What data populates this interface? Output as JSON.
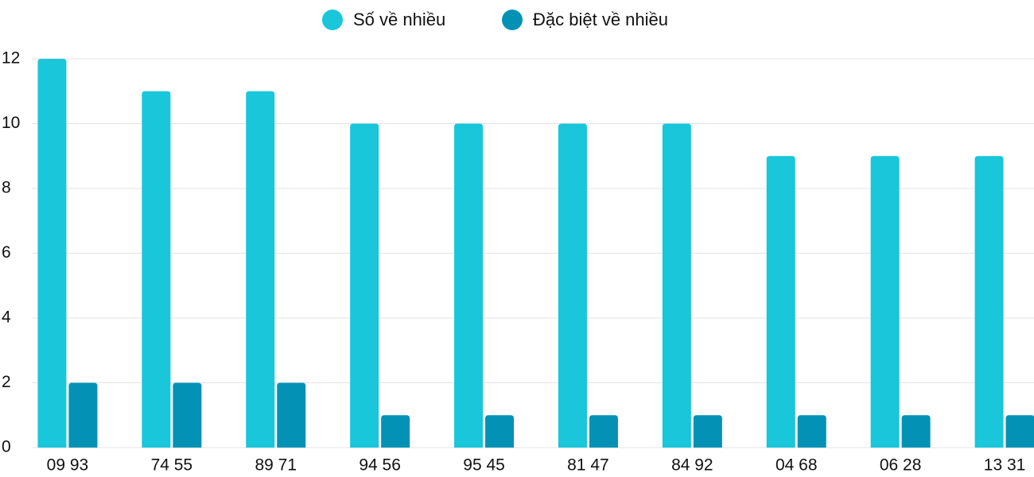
{
  "chart_data": {
    "type": "bar",
    "categories": [
      "09 93",
      "74 55",
      "89 71",
      "94 56",
      "95 45",
      "81 47",
      "84 92",
      "04 68",
      "06 28",
      "13 31"
    ],
    "series": [
      {
        "name": "Số về nhiều",
        "color": "#19c6da",
        "values": [
          12,
          11,
          11,
          10,
          10,
          10,
          10,
          9,
          9,
          9
        ]
      },
      {
        "name": "Đặc biệt về nhiều",
        "color": "#0392b5",
        "values": [
          2,
          2,
          2,
          1,
          1,
          1,
          1,
          1,
          1,
          1
        ]
      }
    ],
    "ylim": [
      0,
      12
    ],
    "yticks": [
      0,
      2,
      4,
      6,
      8,
      10,
      12
    ],
    "grid": true,
    "legend": "top"
  }
}
